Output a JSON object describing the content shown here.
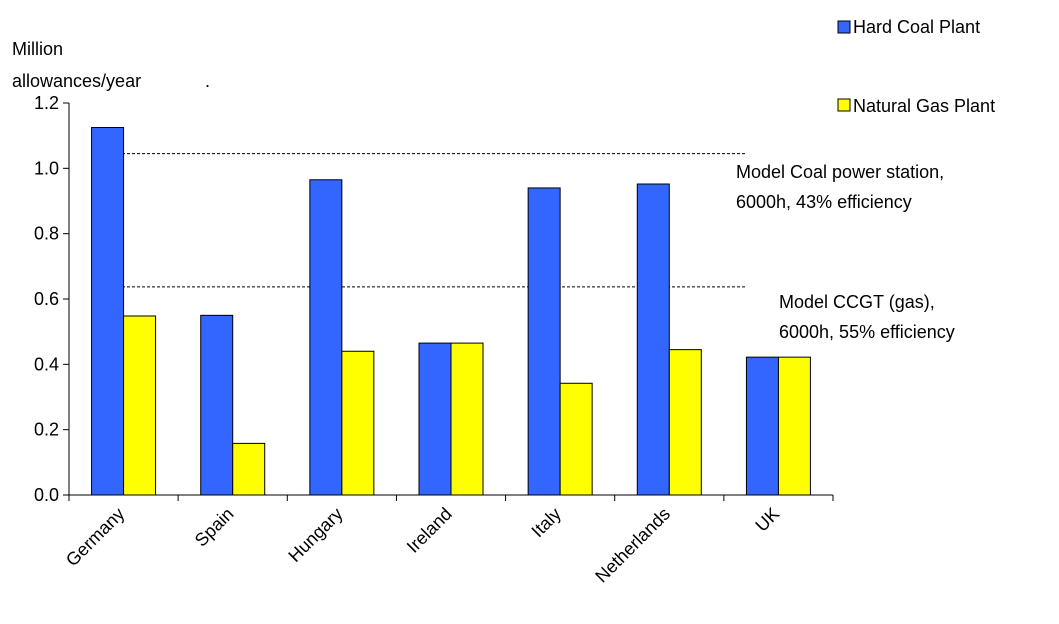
{
  "chart_data": {
    "type": "bar",
    "ylabel_line1": "Million",
    "ylabel_line2": "allowances/year",
    "ylabel_dot": ".",
    "categories": [
      "Germany",
      "Spain",
      "Hungary",
      "Ireland",
      "Italy",
      "Netherlands",
      "UK"
    ],
    "series": [
      {
        "name": "Hard Coal Plant",
        "color": "#3366FF",
        "values": [
          1.125,
          0.55,
          0.965,
          0.465,
          0.94,
          0.952,
          0.422
        ]
      },
      {
        "name": "Natural Gas Plant",
        "color": "#FFFF00",
        "values": [
          0.548,
          0.158,
          0.44,
          0.465,
          0.342,
          0.445,
          0.422
        ]
      }
    ],
    "ylim": [
      0,
      1.2
    ],
    "yticks": [
      "0.0",
      "0.2",
      "0.4",
      "0.6",
      "0.8",
      "1.0",
      "1.2"
    ],
    "grid": false,
    "legend_position": "top-right",
    "reference_lines": [
      {
        "value": 1.045,
        "label_line1": "Model Coal power station,",
        "label_line2": "6000h,  43% efficiency"
      },
      {
        "value": 0.637,
        "label_line1": "Model CCGT (gas),",
        "label_line2": "6000h, 55% efficiency"
      }
    ]
  }
}
